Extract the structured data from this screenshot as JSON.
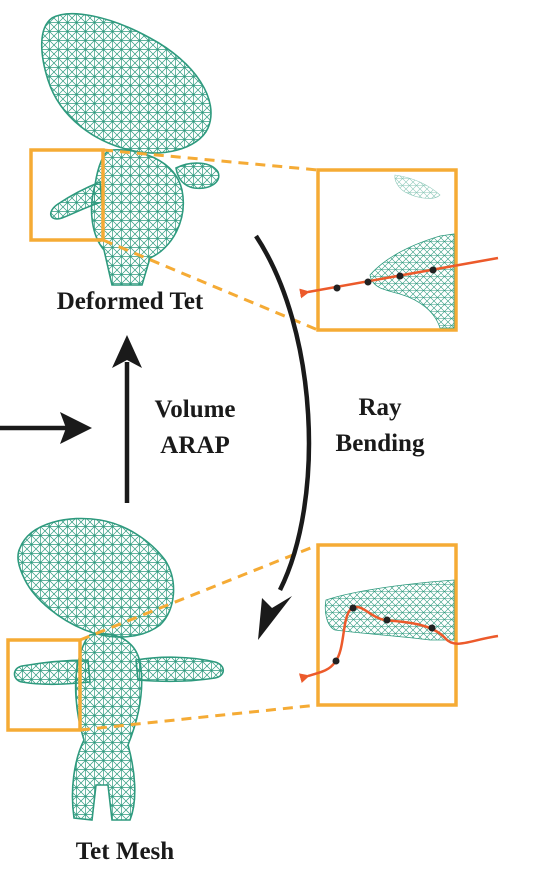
{
  "labels": {
    "deformed_tet": "Deformed Tet",
    "tet_mesh": "Tet Mesh",
    "volume_arap_line1": "Volume",
    "volume_arap_line2": "ARAP",
    "ray_bending_line1": "Ray",
    "ray_bending_line2": "Bending"
  },
  "colors": {
    "mesh": "#2e9a7e",
    "highlight_box": "#f5ab35",
    "ray": "#ec5a2b",
    "arrow": "#1a1a1a",
    "ray_point": "#222222"
  }
}
